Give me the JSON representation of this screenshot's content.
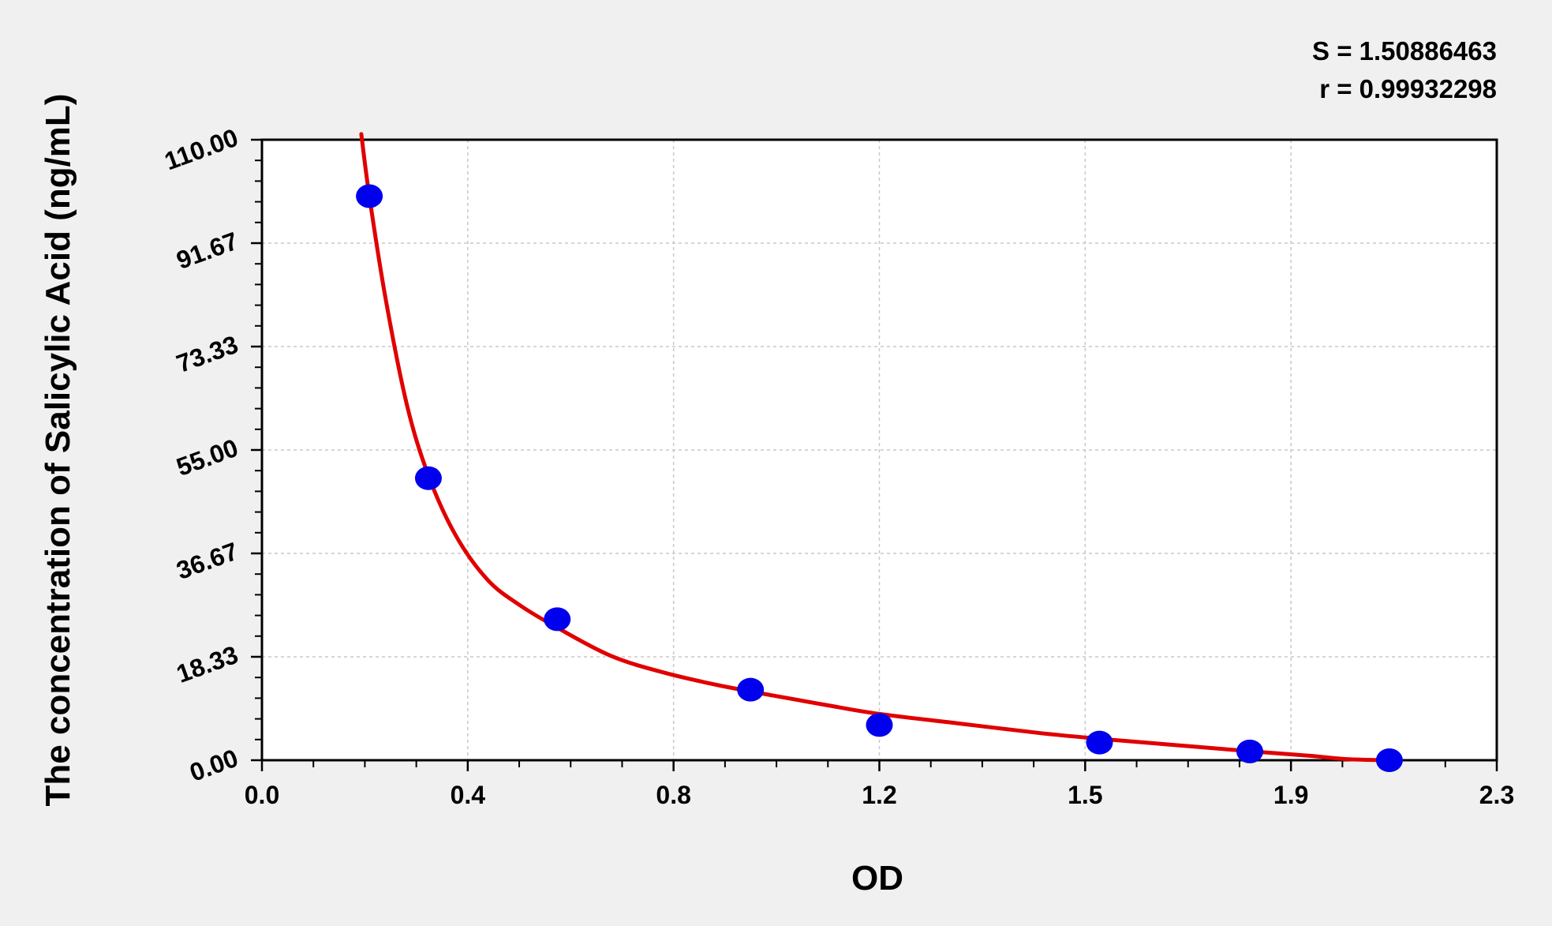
{
  "chart_data": {
    "type": "scatter",
    "xlabel": "OD",
    "ylabel": "The concentration of Salicylic Acid (ng/mL)",
    "xlim": [
      0.0,
      2.3
    ],
    "ylim": [
      0.0,
      110.0
    ],
    "x_ticks": [
      "0.0",
      "0.4",
      "0.8",
      "1.2",
      "1.5",
      "1.9",
      "2.3"
    ],
    "y_ticks": [
      "0.00",
      "18.33",
      "36.67",
      "55.00",
      "73.33",
      "91.67",
      "110.00"
    ],
    "grid": true,
    "stats": {
      "s_label": "S = 1.50886463",
      "r_label": "r = 0.99932298"
    },
    "series": [
      {
        "kind": "points",
        "color": "#0000ee",
        "points": [
          {
            "x": 0.2,
            "y": 100.0
          },
          {
            "x": 0.31,
            "y": 50.0
          },
          {
            "x": 0.55,
            "y": 25.0
          },
          {
            "x": 0.91,
            "y": 12.5
          },
          {
            "x": 1.15,
            "y": 6.25
          },
          {
            "x": 1.56,
            "y": 3.13
          },
          {
            "x": 1.84,
            "y": 1.56
          },
          {
            "x": 2.1,
            "y": 0.0
          }
        ]
      },
      {
        "kind": "curve",
        "color": "#e00000",
        "points": [
          {
            "x": 0.185,
            "y": 111.0
          },
          {
            "x": 0.2,
            "y": 100.0
          },
          {
            "x": 0.23,
            "y": 82.0
          },
          {
            "x": 0.27,
            "y": 63.0
          },
          {
            "x": 0.31,
            "y": 50.5
          },
          {
            "x": 0.36,
            "y": 40.0
          },
          {
            "x": 0.42,
            "y": 32.0
          },
          {
            "x": 0.48,
            "y": 27.5
          },
          {
            "x": 0.55,
            "y": 23.5
          },
          {
            "x": 0.65,
            "y": 18.5
          },
          {
            "x": 0.75,
            "y": 15.5
          },
          {
            "x": 0.85,
            "y": 13.3
          },
          {
            "x": 0.95,
            "y": 11.5
          },
          {
            "x": 1.05,
            "y": 9.8
          },
          {
            "x": 1.15,
            "y": 8.2
          },
          {
            "x": 1.3,
            "y": 6.5
          },
          {
            "x": 1.45,
            "y": 4.8
          },
          {
            "x": 1.56,
            "y": 3.8
          },
          {
            "x": 1.7,
            "y": 2.7
          },
          {
            "x": 1.84,
            "y": 1.6
          },
          {
            "x": 1.95,
            "y": 0.8
          },
          {
            "x": 2.02,
            "y": 0.2
          },
          {
            "x": 2.1,
            "y": 0.0
          }
        ]
      }
    ]
  }
}
